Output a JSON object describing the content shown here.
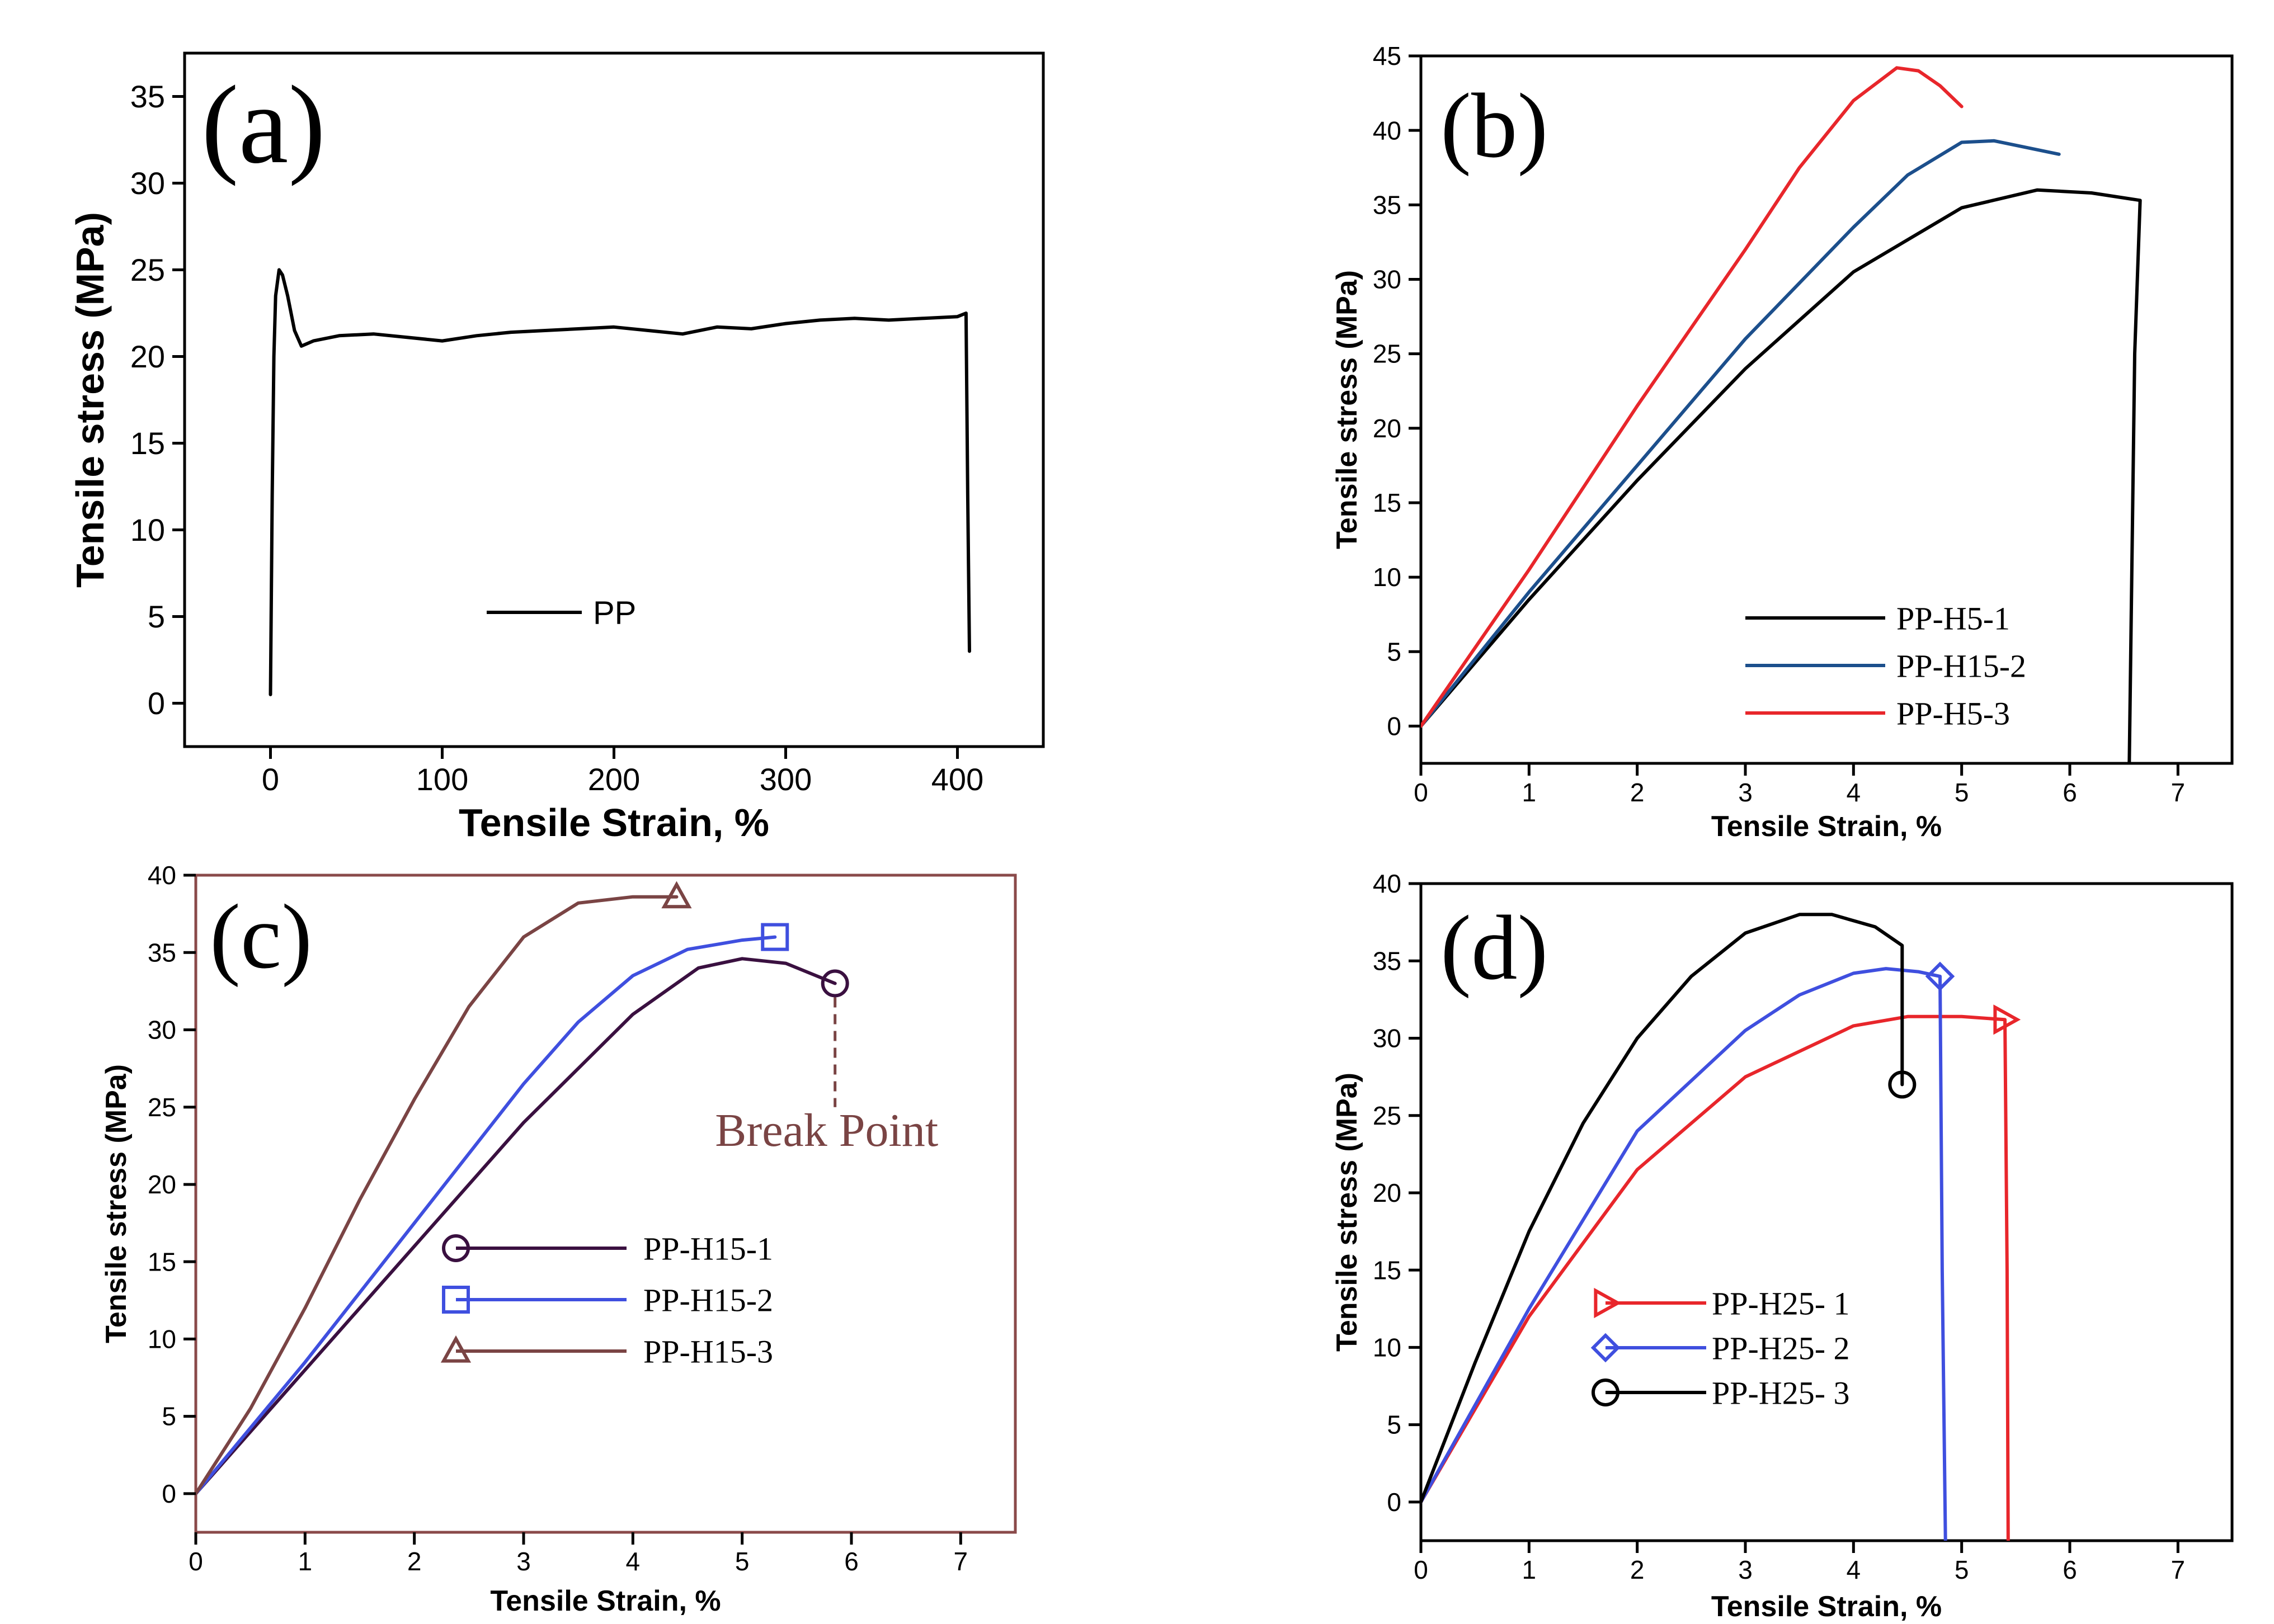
{
  "chart_data": [
    {
      "panel": "(a)",
      "type": "line",
      "xlabel": "Tensile Strain, %",
      "ylabel": "Tensile stress (MPa)",
      "xlim": [
        -50,
        450
      ],
      "ylim": [
        -2.5,
        37.5
      ],
      "xticks": [
        0,
        100,
        200,
        300,
        400
      ],
      "yticks": [
        0,
        5,
        10,
        15,
        20,
        25,
        30,
        35
      ],
      "legend_position": "bottom-center",
      "series": [
        {
          "name": "PP",
          "color": "#000000",
          "marker": "none",
          "points": [
            [
              0,
              0.5
            ],
            [
              1,
              12
            ],
            [
              2,
              20
            ],
            [
              3,
              23.5
            ],
            [
              5,
              25
            ],
            [
              7,
              24.7
            ],
            [
              10,
              23.5
            ],
            [
              14,
              21.5
            ],
            [
              18,
              20.6
            ],
            [
              25,
              20.9
            ],
            [
              40,
              21.2
            ],
            [
              60,
              21.3
            ],
            [
              80,
              21.1
            ],
            [
              100,
              20.9
            ],
            [
              120,
              21.2
            ],
            [
              140,
              21.4
            ],
            [
              160,
              21.5
            ],
            [
              180,
              21.6
            ],
            [
              200,
              21.7
            ],
            [
              220,
              21.5
            ],
            [
              240,
              21.3
            ],
            [
              260,
              21.7
            ],
            [
              280,
              21.6
            ],
            [
              300,
              21.9
            ],
            [
              320,
              22.1
            ],
            [
              340,
              22.2
            ],
            [
              360,
              22.1
            ],
            [
              380,
              22.2
            ],
            [
              400,
              22.3
            ],
            [
              405,
              22.5
            ],
            [
              406,
              12
            ],
            [
              407,
              3
            ]
          ]
        }
      ]
    },
    {
      "panel": "(b)",
      "type": "line",
      "xlabel": "Tensile Strain, %",
      "ylabel": "Tensile stress (MPa)",
      "xlim": [
        0,
        7.5
      ],
      "ylim": [
        -2.5,
        45
      ],
      "xticks": [
        0,
        1,
        2,
        3,
        4,
        5,
        6,
        7
      ],
      "yticks": [
        0,
        5,
        10,
        15,
        20,
        25,
        30,
        35,
        40,
        45
      ],
      "legend_position": "bottom-right",
      "series": [
        {
          "name": "PP-H5-1",
          "color": "#000000",
          "marker": "none",
          "points": [
            [
              0,
              0
            ],
            [
              1,
              8.5
            ],
            [
              2,
              16.5
            ],
            [
              3,
              24
            ],
            [
              4,
              30.5
            ],
            [
              5,
              34.8
            ],
            [
              5.7,
              36
            ],
            [
              6.2,
              35.8
            ],
            [
              6.65,
              35.3
            ],
            [
              6.6,
              25
            ],
            [
              6.55,
              -2.5
            ]
          ]
        },
        {
          "name": "PP-H15-2",
          "color": "#1c4f8c",
          "marker": "none",
          "points": [
            [
              0,
              0
            ],
            [
              1,
              9
            ],
            [
              2,
              17.5
            ],
            [
              3,
              26
            ],
            [
              4,
              33.5
            ],
            [
              4.5,
              37
            ],
            [
              5,
              39.2
            ],
            [
              5.3,
              39.3
            ],
            [
              5.9,
              38.4
            ]
          ]
        },
        {
          "name": "PP-H5-3",
          "color": "#e8262b",
          "marker": "none",
          "points": [
            [
              0,
              0
            ],
            [
              1,
              10.5
            ],
            [
              2,
              21.5
            ],
            [
              3,
              32
            ],
            [
              3.5,
              37.5
            ],
            [
              4,
              42
            ],
            [
              4.4,
              44.2
            ],
            [
              4.6,
              44
            ],
            [
              4.8,
              43
            ],
            [
              5,
              41.6
            ]
          ]
        }
      ]
    },
    {
      "panel": "(c)",
      "type": "line",
      "xlabel": "Tensile Strain, %",
      "ylabel": "Tensile stress (MPa)",
      "xlim": [
        0,
        7.5
      ],
      "ylim": [
        -2.5,
        40
      ],
      "xticks": [
        0,
        1,
        2,
        3,
        4,
        5,
        6,
        7
      ],
      "yticks": [
        0,
        5,
        10,
        15,
        20,
        25,
        30,
        35,
        40
      ],
      "legend_position": "center-right",
      "annotation": "Break Point",
      "series": [
        {
          "name": "PP-H15-1",
          "color": "#3a1040",
          "marker": "circle",
          "points": [
            [
              0,
              0
            ],
            [
              1,
              8
            ],
            [
              2,
              16
            ],
            [
              3,
              24
            ],
            [
              4,
              31
            ],
            [
              4.6,
              34
            ],
            [
              5,
              34.6
            ],
            [
              5.4,
              34.3
            ],
            [
              5.85,
              33
            ]
          ]
        },
        {
          "name": "PP-H15-2",
          "color": "#3f4fdf",
          "marker": "square",
          "points": [
            [
              0,
              0
            ],
            [
              1,
              8.5
            ],
            [
              2,
              17.5
            ],
            [
              3,
              26.5
            ],
            [
              3.5,
              30.5
            ],
            [
              4,
              33.5
            ],
            [
              4.5,
              35.2
            ],
            [
              5,
              35.8
            ],
            [
              5.3,
              36
            ]
          ]
        },
        {
          "name": "PP-H15-3",
          "color": "#7a4444",
          "marker": "triangle",
          "points": [
            [
              0,
              0
            ],
            [
              0.5,
              5.5
            ],
            [
              1,
              12
            ],
            [
              1.5,
              19
            ],
            [
              2,
              25.5
            ],
            [
              2.5,
              31.5
            ],
            [
              3,
              36
            ],
            [
              3.5,
              38.2
            ],
            [
              4,
              38.6
            ],
            [
              4.4,
              38.6
            ]
          ]
        }
      ]
    },
    {
      "panel": "(d)",
      "type": "line",
      "xlabel": "Tensile Strain, %",
      "ylabel": "Tensile stress (MPa)",
      "xlim": [
        0,
        7.5
      ],
      "ylim": [
        -2.5,
        40
      ],
      "xticks": [
        0,
        1,
        2,
        3,
        4,
        5,
        6,
        7
      ],
      "yticks": [
        0,
        5,
        10,
        15,
        20,
        25,
        30,
        35,
        40
      ],
      "legend_position": "center-left",
      "series": [
        {
          "name": "PP-H25- 1",
          "color": "#e8262b",
          "marker": "triangle-right",
          "points": [
            [
              0,
              0
            ],
            [
              1,
              12
            ],
            [
              2,
              21.5
            ],
            [
              3,
              27.5
            ],
            [
              4,
              30.8
            ],
            [
              4.5,
              31.4
            ],
            [
              5,
              31.4
            ],
            [
              5.4,
              31.2
            ],
            [
              5.42,
              15
            ],
            [
              5.43,
              -2.5
            ]
          ]
        },
        {
          "name": "PP-H25- 2",
          "color": "#3f4fdf",
          "marker": "diamond",
          "points": [
            [
              0,
              0
            ],
            [
              1,
              12.5
            ],
            [
              2,
              24
            ],
            [
              3,
              30.5
            ],
            [
              3.5,
              32.8
            ],
            [
              4,
              34.2
            ],
            [
              4.3,
              34.5
            ],
            [
              4.6,
              34.3
            ],
            [
              4.8,
              34
            ],
            [
              4.82,
              15
            ],
            [
              4.85,
              -2.5
            ]
          ]
        },
        {
          "name": "PP-H25- 3",
          "color": "#000000",
          "marker": "circle",
          "points": [
            [
              0,
              0
            ],
            [
              0.5,
              9
            ],
            [
              1,
              17.5
            ],
            [
              1.5,
              24.5
            ],
            [
              2,
              30
            ],
            [
              2.5,
              34
            ],
            [
              3,
              36.8
            ],
            [
              3.5,
              38
            ],
            [
              3.8,
              38
            ],
            [
              4.2,
              37.2
            ],
            [
              4.45,
              36
            ],
            [
              4.45,
              27
            ]
          ]
        }
      ]
    }
  ],
  "panels": [
    {
      "label": "(a)",
      "xlabel": "Tensile Strain, %",
      "ylabel": "Tensile stress (MPa)",
      "legend": [
        "PP"
      ]
    },
    {
      "label": "(b)",
      "xlabel": "Tensile Strain, %",
      "ylabel": "Tensile stress (MPa)",
      "legend": [
        "PP-H5-1",
        "PP-H15-2",
        "PP-H5-3"
      ]
    },
    {
      "label": "(c)",
      "xlabel": "Tensile Strain, %",
      "ylabel": "Tensile stress (MPa)",
      "legend": [
        "PP-H15-1",
        "PP-H15-2",
        "PP-H15-3"
      ],
      "annotation": "Break Point"
    },
    {
      "label": "(d)",
      "xlabel": "Tensile Strain, %",
      "ylabel": "Tensile stress (MPa)",
      "legend": [
        "PP-H25- 1",
        "PP-H25- 2",
        "PP-H25- 3"
      ]
    }
  ],
  "colors": {
    "axis": "#000000",
    "frame_c": "#8a4a4a",
    "annotation": "#7a4444"
  }
}
